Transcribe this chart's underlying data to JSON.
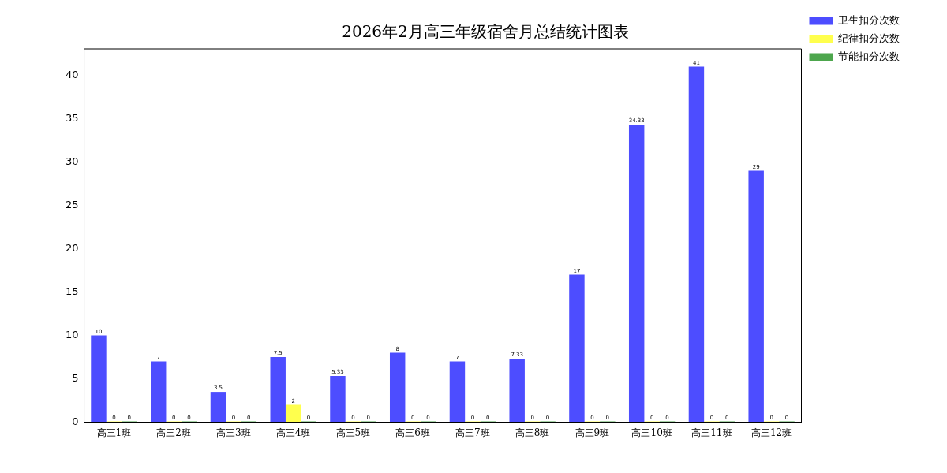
{
  "chart_data": {
    "type": "bar",
    "title": "2026年2月高三年级宿舍月总结统计图表",
    "categories": [
      "高三1班",
      "高三2班",
      "高三3班",
      "高三4班",
      "高三5班",
      "高三6班",
      "高三7班",
      "高三8班",
      "高三9班",
      "高三10班",
      "高三11班",
      "高三12班"
    ],
    "series": [
      {
        "name": "卫生扣分次数",
        "color": "#4d4dff",
        "values": [
          10,
          7,
          3.5,
          7.5,
          5.33,
          8,
          7,
          7.33,
          17,
          34.33,
          41,
          29
        ]
      },
      {
        "name": "纪律扣分次数",
        "color": "#ffff4d",
        "values": [
          0,
          0,
          0,
          2,
          0,
          0,
          0,
          0,
          0,
          0,
          0,
          0
        ]
      },
      {
        "name": "节能扣分次数",
        "color": "#4da64d",
        "values": [
          0,
          0,
          0,
          0,
          0,
          0,
          0,
          0,
          0,
          0,
          0,
          0
        ]
      }
    ],
    "ylim": [
      0,
      43.05
    ],
    "yticks": [
      0,
      5,
      10,
      15,
      20,
      25,
      30,
      35,
      40
    ],
    "grid": false,
    "legend": "top right",
    "data_labels": true
  }
}
